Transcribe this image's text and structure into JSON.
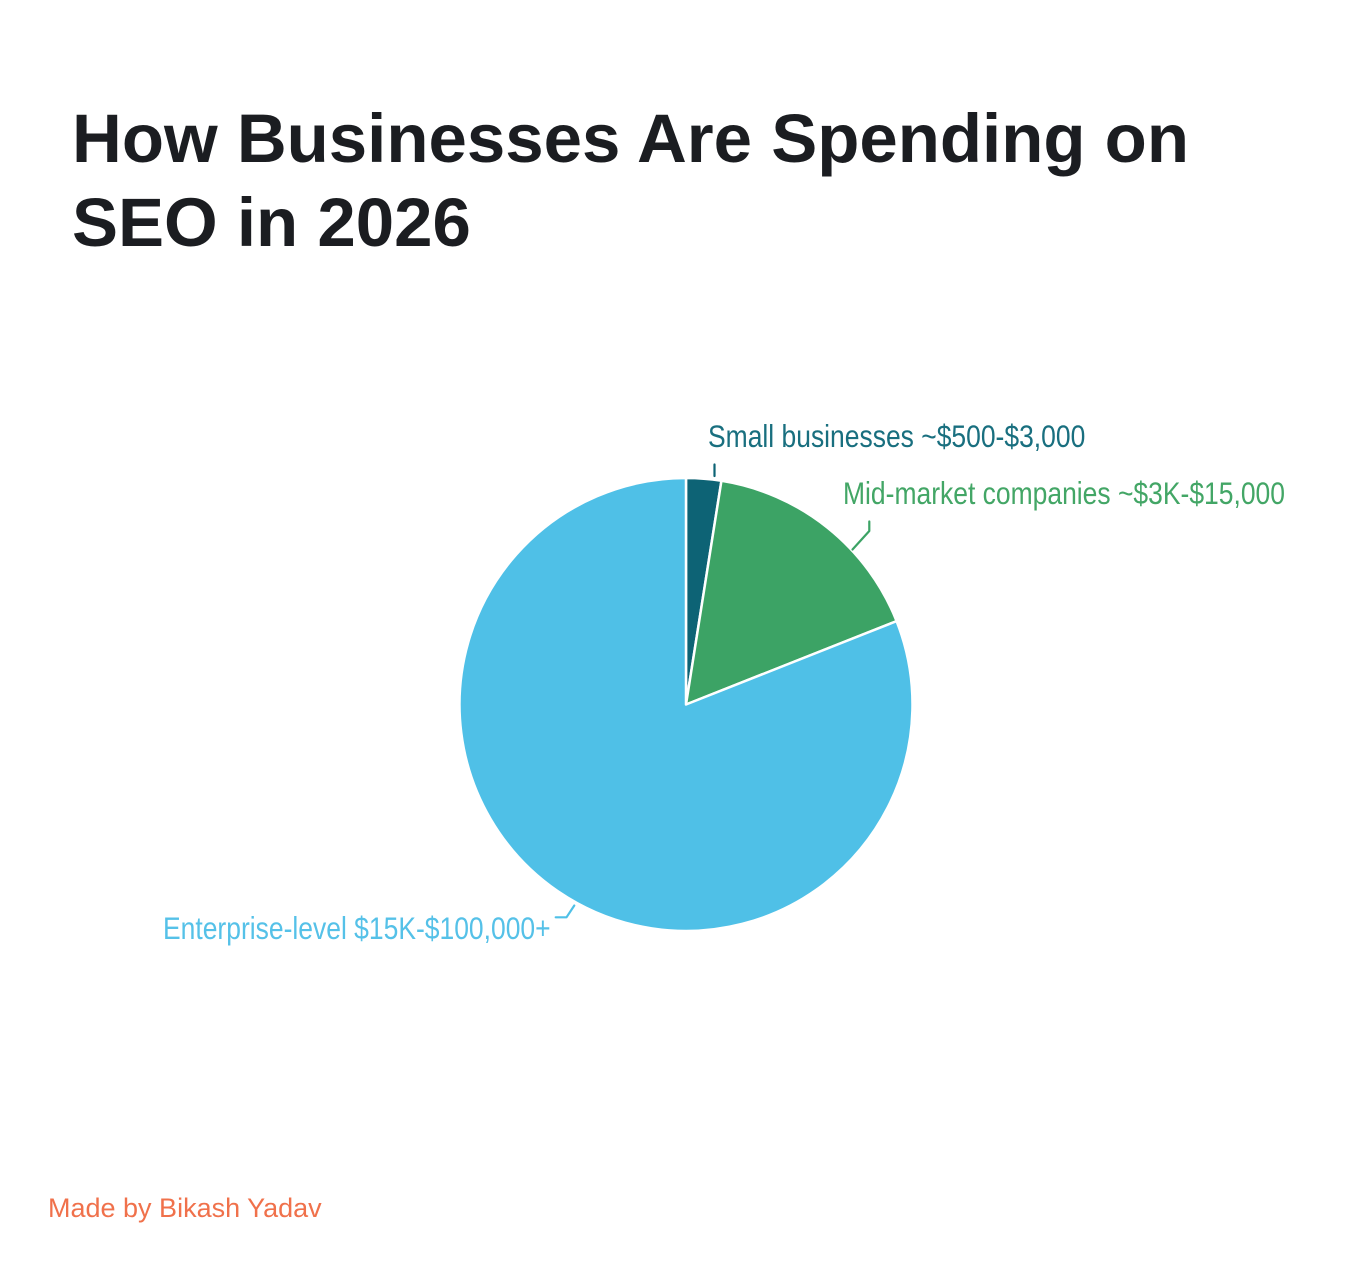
{
  "attribution": "Made by Bikash Yadav",
  "colors": {
    "background": "#FFFFFF",
    "title_text": "#1B1D21",
    "attribution_text": "#F0714B",
    "slice_separator": "#FFFFFF"
  },
  "chart_data": {
    "type": "pie",
    "title": "How Businesses Are Spending on SEO in 2026",
    "legend_position": "outside-labels-with-leader-lines",
    "start_angle_deg": 0,
    "direction": "clockwise",
    "values_are": "estimated percent of pie area (no numeric labels shown in image)",
    "slices": [
      {
        "label": "Small businesses ~$500-$3,000",
        "value": 2.5,
        "color": "#0D6375",
        "label_color": "#196F7F"
      },
      {
        "label": "Mid-market companies ~$3K-$15,000",
        "value": 16.5,
        "color": "#3CA365",
        "label_color": "#43A666"
      },
      {
        "label": "Enterprise-level $15K-$100,000+",
        "value": 81.0,
        "color": "#4FC0E7",
        "label_color": "#55C1E8"
      }
    ]
  }
}
